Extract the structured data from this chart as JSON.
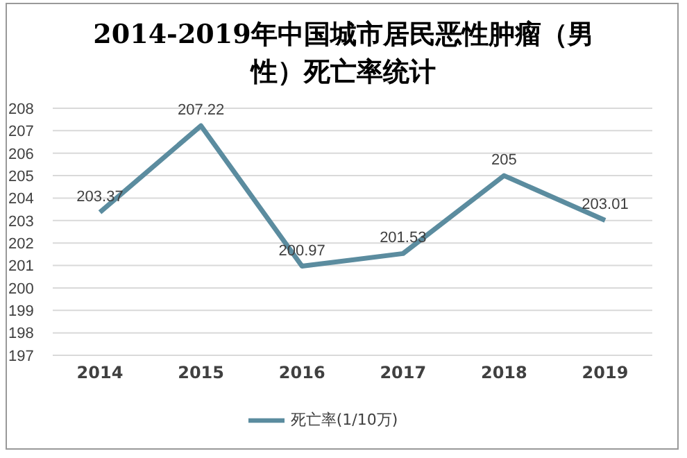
{
  "chart_data": {
    "type": "line",
    "title": "2014-2019年中国城市居民恶性肿瘤（男性）死亡率统计",
    "categories": [
      "2014",
      "2015",
      "2016",
      "2017",
      "2018",
      "2019"
    ],
    "series": [
      {
        "name": "死亡率(1/10万)",
        "color": "#5b8c9f",
        "values": [
          203.37,
          207.22,
          200.97,
          201.53,
          205,
          203.01
        ]
      }
    ],
    "ylim": [
      197,
      208
    ],
    "yticks": [
      197,
      198,
      199,
      200,
      201,
      202,
      203,
      204,
      205,
      206,
      207,
      208
    ],
    "grid": "y",
    "legend": "bottom",
    "data_labels": true,
    "marker": "none",
    "line_style": "solid"
  }
}
